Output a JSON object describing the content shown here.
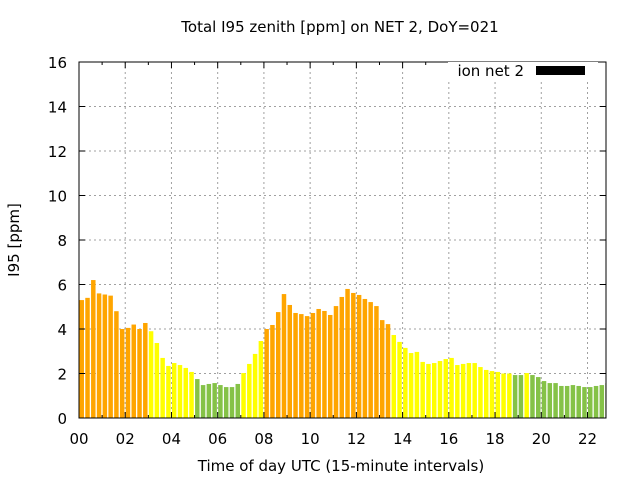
{
  "chart_data": {
    "type": "bar",
    "title": "Total I95 zenith [ppm] on NET 2, DoY=021",
    "xlabel": "Time of day UTC (15-minute intervals)",
    "ylabel": "I95 [ppm]",
    "xlim": [
      0,
      22.8
    ],
    "ylim": [
      0,
      16
    ],
    "grid": true,
    "legend": {
      "position": "top-right",
      "entries": [
        {
          "label": "ion net 2",
          "color": "#000000"
        }
      ]
    },
    "x_ticks": [
      "00",
      "02",
      "04",
      "06",
      "08",
      "10",
      "12",
      "14",
      "16",
      "18",
      "20",
      "22"
    ],
    "x_tick_values": [
      0,
      2,
      4,
      6,
      8,
      10,
      12,
      14,
      16,
      18,
      20,
      22
    ],
    "y_ticks": [
      "0",
      "2",
      "4",
      "6",
      "8",
      "10",
      "12",
      "14",
      "16"
    ],
    "y_tick_values": [
      0,
      2,
      4,
      6,
      8,
      10,
      12,
      14,
      16
    ],
    "bar_interval_hours": 0.25,
    "colors": {
      "orange": "#FFA500",
      "yellow": "#FFFF00",
      "green": "#85C247"
    },
    "series": [
      {
        "name": "ion net 2",
        "values": [
          5.3,
          5.4,
          6.2,
          5.6,
          5.55,
          5.5,
          4.8,
          4.0,
          4.05,
          4.2,
          4.0,
          4.27,
          3.9,
          3.37,
          2.7,
          2.34,
          2.47,
          2.38,
          2.25,
          2.07,
          1.75,
          1.48,
          1.53,
          1.57,
          1.48,
          1.39,
          1.39,
          1.53,
          2.02,
          2.43,
          2.88,
          3.46,
          4.0,
          4.18,
          4.76,
          5.57,
          5.08,
          4.72,
          4.67,
          4.58,
          4.72,
          4.9,
          4.81,
          4.63,
          5.03,
          5.44,
          5.8,
          5.62,
          5.53,
          5.35,
          5.21,
          5.03,
          4.4,
          4.22,
          3.73,
          3.42,
          3.15,
          2.92,
          2.97,
          2.52,
          2.43,
          2.47,
          2.56,
          2.65,
          2.7,
          2.38,
          2.43,
          2.47,
          2.47,
          2.29,
          2.16,
          2.11,
          2.07,
          2.0,
          2.0,
          1.93,
          1.93,
          2.02,
          1.93,
          1.84,
          1.66,
          1.57,
          1.57,
          1.44,
          1.44,
          1.48,
          1.44,
          1.39,
          1.39,
          1.44,
          1.48,
          1.57
        ],
        "bar_colors": [
          "orange",
          "orange",
          "orange",
          "orange",
          "orange",
          "orange",
          "orange",
          "orange",
          "orange",
          "orange",
          "orange",
          "orange",
          "yellow",
          "yellow",
          "yellow",
          "yellow",
          "yellow",
          "yellow",
          "yellow",
          "yellow",
          "green",
          "green",
          "green",
          "green",
          "green",
          "green",
          "green",
          "green",
          "yellow",
          "yellow",
          "yellow",
          "yellow",
          "orange",
          "orange",
          "orange",
          "orange",
          "orange",
          "orange",
          "orange",
          "orange",
          "orange",
          "orange",
          "orange",
          "orange",
          "orange",
          "orange",
          "orange",
          "orange",
          "orange",
          "orange",
          "orange",
          "orange",
          "orange",
          "orange",
          "yellow",
          "yellow",
          "yellow",
          "yellow",
          "yellow",
          "yellow",
          "yellow",
          "yellow",
          "yellow",
          "yellow",
          "yellow",
          "yellow",
          "yellow",
          "yellow",
          "yellow",
          "yellow",
          "yellow",
          "yellow",
          "yellow",
          "yellow",
          "yellow",
          "green",
          "green",
          "yellow",
          "green",
          "green",
          "green",
          "green",
          "green",
          "green",
          "green",
          "green",
          "green",
          "green",
          "green",
          "green",
          "green",
          "green"
        ]
      }
    ]
  }
}
